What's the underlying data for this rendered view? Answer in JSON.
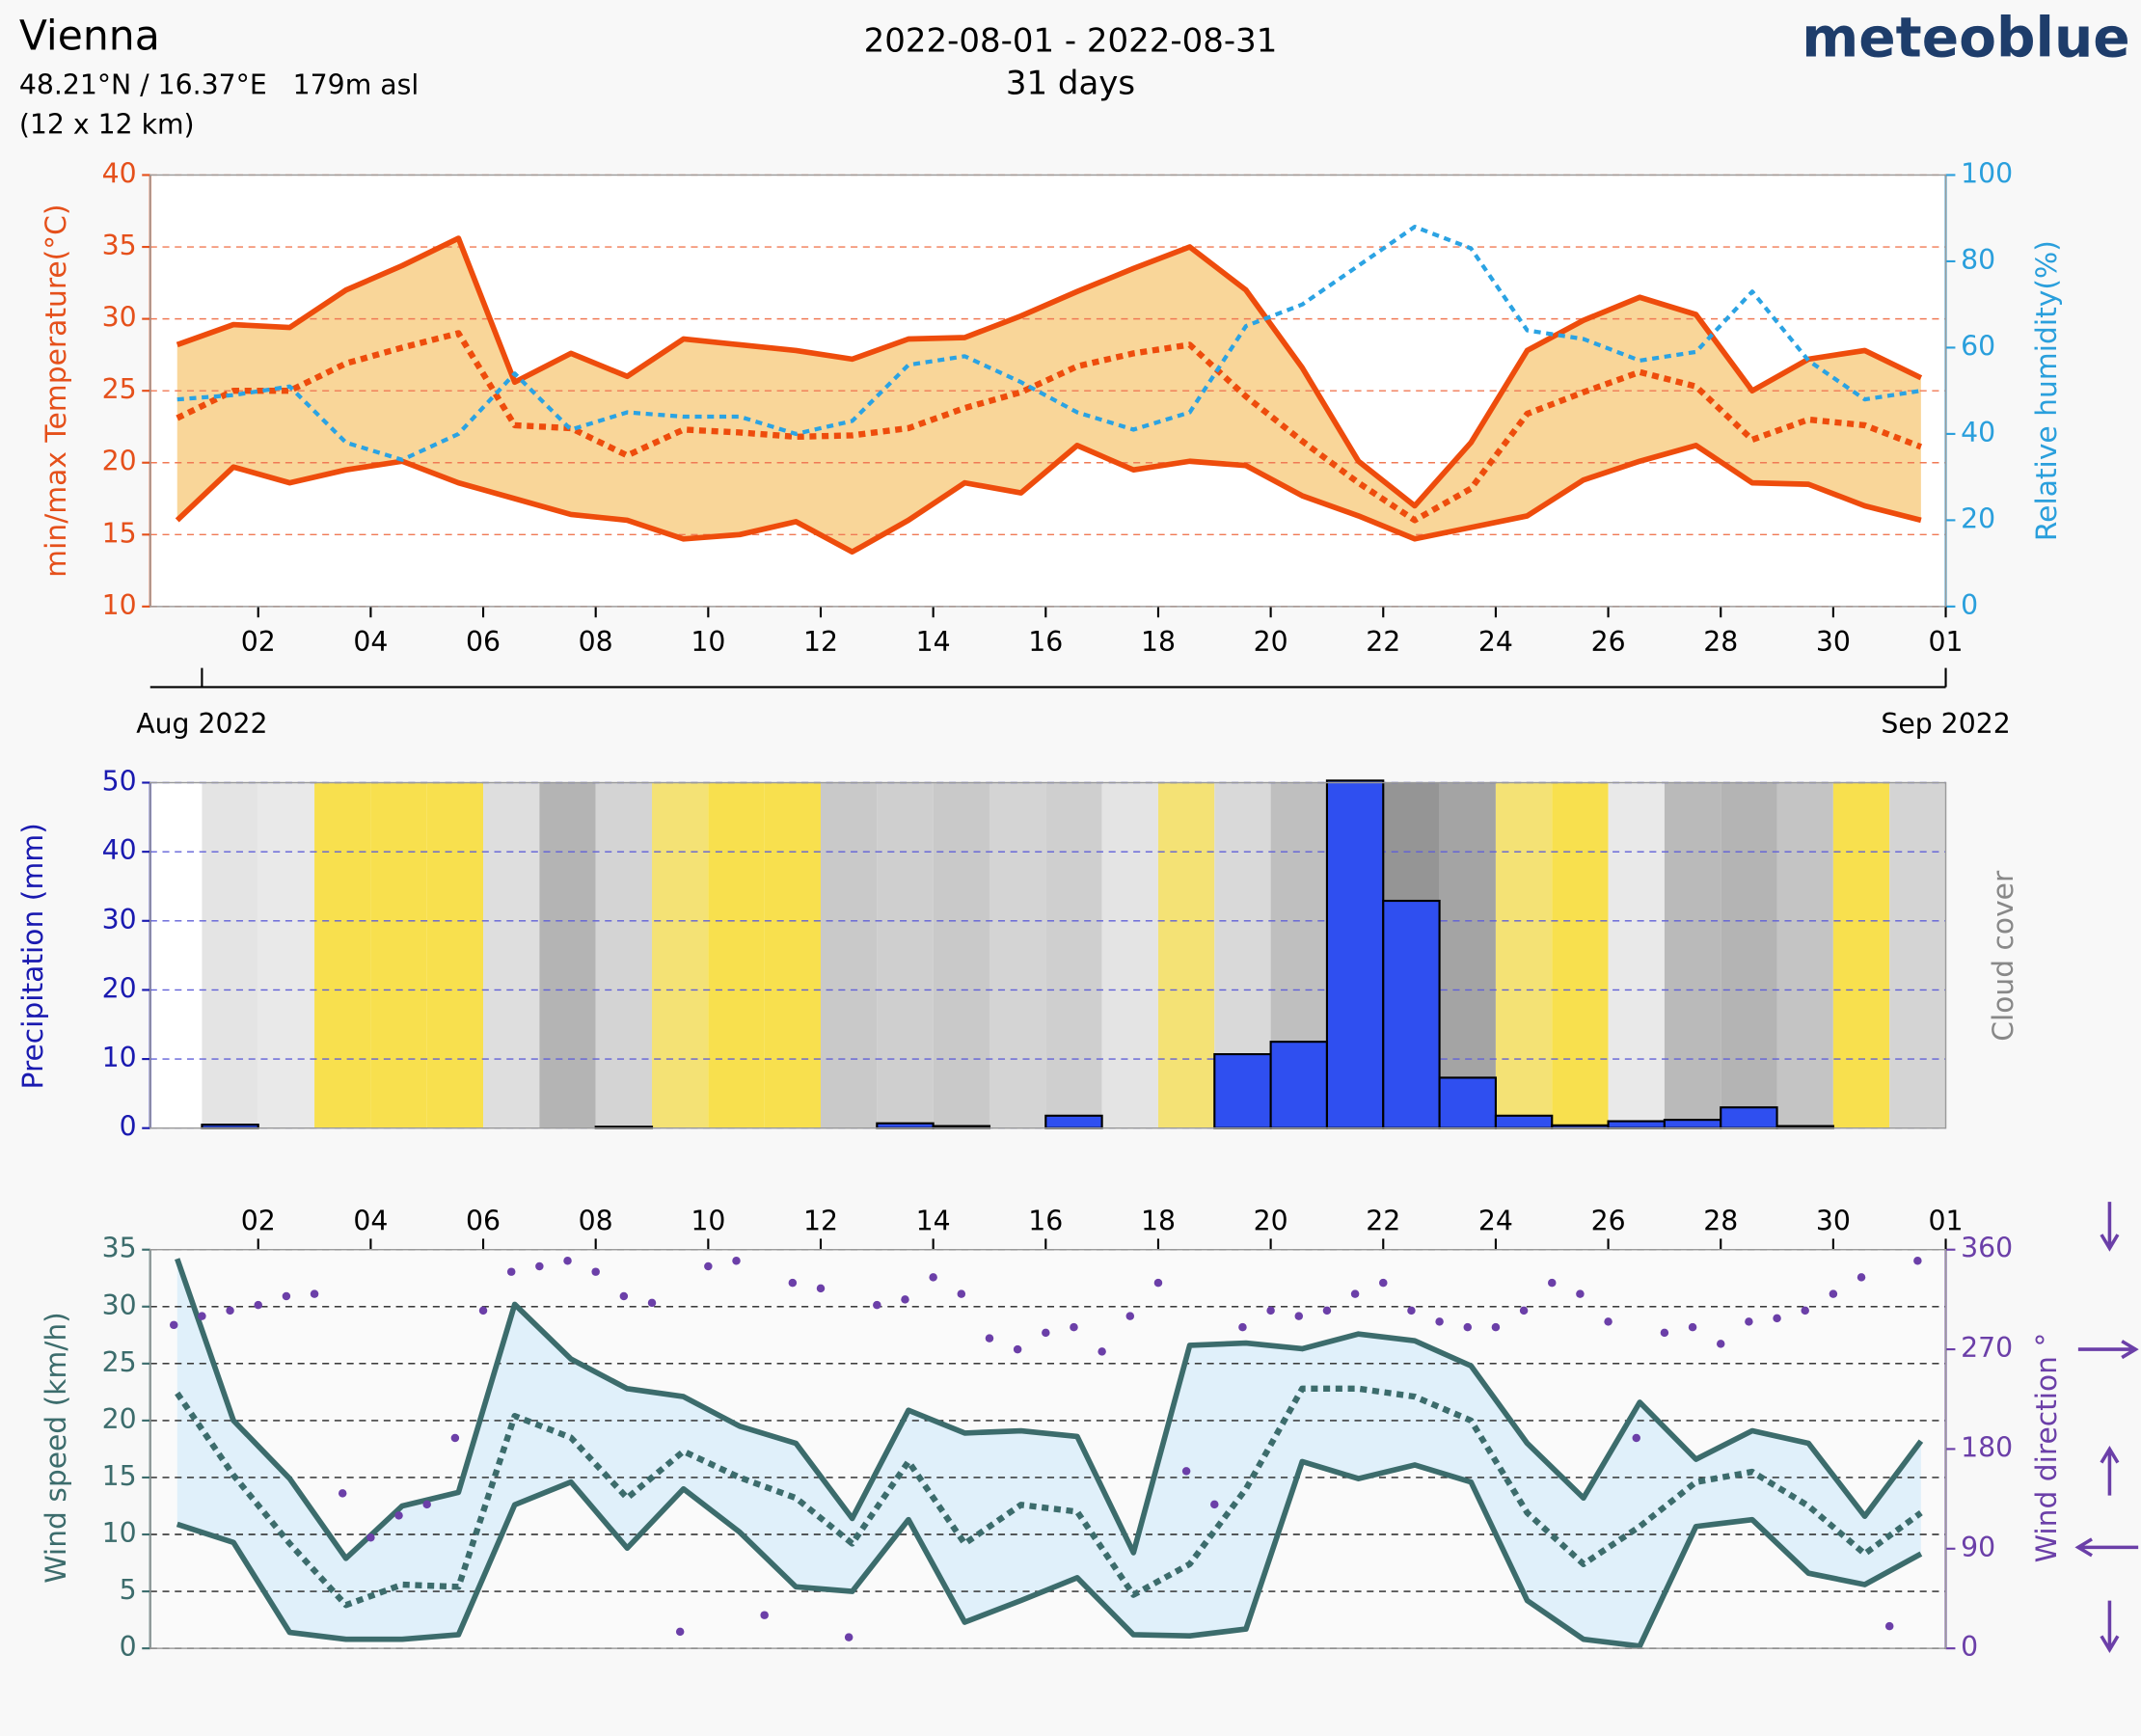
{
  "header": {
    "location": "Vienna",
    "coordinates": "48.21°N / 16.37°E   179m asl",
    "resolution": "(12 x 12 km)",
    "period": "2022-08-01 - 2022-08-31",
    "duration": "31 days",
    "brand": "meteoblue"
  },
  "chart_data": [
    {
      "type": "line",
      "x": [
        0.56,
        1.56,
        2.56,
        3.56,
        4.56,
        5.56,
        6.56,
        7.56,
        8.56,
        9.56,
        10.56,
        11.56,
        12.56,
        13.56,
        14.56,
        15.56,
        16.56,
        17.56,
        18.56,
        19.56,
        20.56,
        21.56,
        22.56,
        23.56,
        24.56,
        25.56,
        26.56,
        27.56,
        28.56,
        29.56,
        30.56,
        31.56
      ],
      "xlim": [
        0.08,
        32
      ],
      "xticks": [
        {
          "value": 2,
          "label": "02"
        },
        {
          "value": 4,
          "label": "04"
        },
        {
          "value": 6,
          "label": "06"
        },
        {
          "value": 8,
          "label": "08"
        },
        10,
        12,
        14,
        16,
        18,
        20,
        22,
        24,
        26,
        28,
        30,
        {
          "value": 32,
          "label": "01"
        }
      ],
      "month_ticks": [
        {
          "value": 1,
          "label": "Aug 2022"
        },
        {
          "value": 32,
          "label": "Sep 2022"
        }
      ],
      "ylim": [
        10,
        40
      ],
      "yticks": [
        10,
        15,
        20,
        25,
        30,
        35,
        40
      ],
      "y2lim": [
        0,
        100
      ],
      "y2ticks": [
        0,
        20,
        40,
        60,
        80,
        100
      ],
      "ylabel": "min/max Temperature(°C)",
      "y2label": "Relative humidity(%)",
      "grid": true,
      "grid_color": "#f07a55",
      "band_fill": "#f9d699",
      "axis_colors": {
        "y": "#e5501b",
        "y2": "#2a9fdc"
      },
      "series": [
        {
          "color": "#ee4c0c",
          "style": "solid",
          "values": [
            28.2,
            29.6,
            29.4,
            32.0,
            33.7,
            35.6,
            25.6,
            27.6,
            26.0,
            28.6,
            28.2,
            27.8,
            27.2,
            28.6,
            28.7,
            30.2,
            31.9,
            33.5,
            35.0,
            32.0,
            26.6,
            20.1,
            17.0,
            21.4,
            27.8,
            29.9,
            31.5,
            30.3,
            25.0,
            27.2,
            27.8,
            25.9
          ]
        },
        {
          "color": "#ee4c0c",
          "style": "dotted",
          "values": [
            23.1,
            25.0,
            25.0,
            26.9,
            28.0,
            29.0,
            22.6,
            22.4,
            20.5,
            22.3,
            22.1,
            21.8,
            21.9,
            22.4,
            23.8,
            24.9,
            26.7,
            27.6,
            28.2,
            24.6,
            21.5,
            18.6,
            16.0,
            18.2,
            23.4,
            24.9,
            26.3,
            25.3,
            21.6,
            23.0,
            22.6,
            21.1
          ]
        },
        {
          "color": "#ee4c0c",
          "style": "solid",
          "values": [
            16.0,
            19.7,
            18.6,
            19.5,
            20.1,
            18.6,
            17.5,
            16.4,
            16.0,
            14.7,
            15.0,
            15.9,
            13.8,
            16.0,
            18.6,
            17.9,
            21.2,
            19.5,
            20.1,
            19.8,
            17.7,
            16.3,
            14.7,
            15.5,
            16.3,
            18.8,
            20.1,
            21.2,
            18.6,
            18.5,
            17.0,
            16.0
          ]
        },
        {
          "color": "#2ba3e3",
          "style": "dotted",
          "axis": "y2",
          "values": [
            48,
            49,
            51,
            38,
            34,
            40,
            54,
            41,
            45,
            44,
            44,
            40,
            43,
            56,
            58,
            52,
            45,
            41,
            45,
            65,
            70,
            79,
            88,
            83,
            64,
            62,
            57,
            59,
            73,
            57,
            48,
            50
          ]
        }
      ]
    },
    {
      "type": "bar",
      "x": [
        1.5,
        2.5,
        3.5,
        4.5,
        5.5,
        6.5,
        7.5,
        8.5,
        9.5,
        10.5,
        11.5,
        12.5,
        13.5,
        14.5,
        15.5,
        16.5,
        17.5,
        18.5,
        19.5,
        20.5,
        21.5,
        22.5,
        23.5,
        24.5,
        25.5,
        26.5,
        27.5,
        28.5,
        29.5,
        30.5,
        31.5
      ],
      "values": [
        0.5,
        0,
        0,
        0,
        0,
        0,
        0,
        0.2,
        0,
        0,
        0,
        0,
        0.7,
        0.3,
        0,
        1.8,
        0,
        0,
        10.7,
        12.5,
        50.3,
        32.9,
        7.3,
        1.8,
        0.4,
        1.0,
        1.2,
        3.0,
        0.3,
        0,
        0
      ],
      "cloud_cover": [
        15,
        10,
        0,
        0,
        0,
        20,
        60,
        30,
        5,
        0,
        0,
        40,
        35,
        40,
        30,
        35,
        15,
        5,
        25,
        50,
        85,
        90,
        75,
        5,
        0,
        10,
        55,
        60,
        45,
        0,
        30
      ],
      "xlim": [
        0.08,
        32
      ],
      "ylim": [
        0,
        50
      ],
      "yticks": [
        0,
        10,
        20,
        30,
        40,
        50
      ],
      "ylabel": "Precipitation (mm)",
      "y2label": "Cloud cover",
      "color": "#2f4ff0",
      "cloud_colors": {
        "clear": "#f8e04e",
        "light": "#e9e9e9",
        "overcast": "#8a8a8a"
      },
      "grid": true,
      "grid_color": "#6060d8",
      "axis_colors": {
        "y": "#1a1ab0",
        "y2": "#888888"
      }
    },
    {
      "type": "line",
      "x": [
        0.56,
        1.56,
        2.56,
        3.56,
        4.56,
        5.56,
        6.56,
        7.56,
        8.56,
        9.56,
        10.56,
        11.56,
        12.56,
        13.56,
        14.56,
        15.56,
        16.56,
        17.56,
        18.56,
        19.56,
        20.56,
        21.56,
        22.56,
        23.56,
        24.56,
        25.56,
        26.56,
        27.56,
        28.56,
        29.56,
        30.56,
        31.56
      ],
      "xlim": [
        0.08,
        32
      ],
      "xticks": [
        {
          "value": 2,
          "label": "02"
        },
        {
          "value": 4,
          "label": "04"
        },
        {
          "value": 6,
          "label": "06"
        },
        {
          "value": 8,
          "label": "08"
        },
        10,
        12,
        14,
        16,
        18,
        20,
        22,
        24,
        26,
        28,
        30,
        {
          "value": 32,
          "label": "01"
        }
      ],
      "ylim": [
        0,
        35
      ],
      "yticks": [
        0,
        5,
        10,
        15,
        20,
        25,
        30,
        35
      ],
      "y2lim": [
        0,
        360
      ],
      "y2ticks": [
        0,
        90,
        180,
        270,
        360
      ],
      "ylabel": "Wind speed (km/h)",
      "y2label": "Wind direction °",
      "grid": true,
      "grid_color": "#222222",
      "band_fill": "#e0f0fa",
      "axis_colors": {
        "y": "#3c6c6c",
        "y2": "#6b3fa8"
      },
      "series": [
        {
          "color": "#3c6c6c",
          "style": "solid",
          "values": [
            34.2,
            20.0,
            14.9,
            7.9,
            12.5,
            13.7,
            30.2,
            25.4,
            22.8,
            22.1,
            19.5,
            18.0,
            11.4,
            20.9,
            18.9,
            19.1,
            18.6,
            8.4,
            26.6,
            26.8,
            26.3,
            27.6,
            27.0,
            24.8,
            18.0,
            13.2,
            21.6,
            16.6,
            19.1,
            18.0,
            11.6,
            18.2
          ]
        },
        {
          "color": "#3c6c6c",
          "style": "dotted",
          "values": [
            22.4,
            15.2,
            9.2,
            3.8,
            5.6,
            5.4,
            20.4,
            18.5,
            13.2,
            17.3,
            15.0,
            13.2,
            9.2,
            16.4,
            9.2,
            12.6,
            12.0,
            4.7,
            7.4,
            14.0,
            22.8,
            22.8,
            22.1,
            20.0,
            11.9,
            7.4,
            10.7,
            14.6,
            15.5,
            12.5,
            8.3,
            11.9
          ]
        },
        {
          "color": "#3c6c6c",
          "style": "solid",
          "values": [
            10.9,
            9.3,
            1.4,
            0.8,
            0.8,
            1.2,
            12.6,
            14.6,
            8.8,
            14.0,
            10.2,
            5.4,
            5.0,
            11.3,
            2.3,
            4.2,
            6.2,
            1.2,
            1.1,
            1.7,
            16.4,
            14.9,
            16.1,
            14.6,
            4.2,
            0.8,
            0.2,
            10.7,
            11.3,
            6.6,
            5.6,
            8.3
          ]
        },
        {
          "color": "#6b3fa8",
          "style": "points",
          "axis": "y2",
          "x": [
            0.5,
            1.0,
            1.5,
            2.0,
            2.5,
            3.0,
            3.5,
            4.0,
            4.5,
            5.0,
            5.5,
            6.0,
            6.5,
            7.0,
            7.5,
            8.0,
            8.5,
            9.0,
            9.5,
            10.0,
            10.5,
            11.0,
            11.5,
            12.0,
            12.5,
            13.0,
            13.5,
            14.0,
            14.5,
            15.0,
            15.5,
            16.0,
            16.5,
            17.0,
            17.5,
            18.0,
            18.5,
            19.0,
            19.5,
            20.0,
            20.5,
            21.0,
            21.5,
            22.0,
            22.5,
            23.0,
            23.5,
            24.0,
            24.5,
            25.0,
            25.5,
            26.0,
            26.5,
            27.0,
            27.5,
            28.0,
            28.5,
            29.0,
            29.5,
            30.0,
            30.5,
            31.0,
            31.5
          ],
          "values": [
            292,
            300,
            305,
            310,
            318,
            320,
            140,
            100,
            120,
            130,
            190,
            305,
            340,
            345,
            350,
            340,
            318,
            312,
            15,
            345,
            350,
            30,
            330,
            325,
            10,
            310,
            315,
            335,
            320,
            280,
            270,
            285,
            290,
            268,
            300,
            330,
            160,
            130,
            290,
            305,
            300,
            305,
            320,
            330,
            305,
            295,
            290,
            290,
            305,
            330,
            320,
            295,
            190,
            285,
            290,
            275,
            295,
            298,
            305,
            320,
            335,
            20,
            350
          ]
        }
      ]
    }
  ]
}
